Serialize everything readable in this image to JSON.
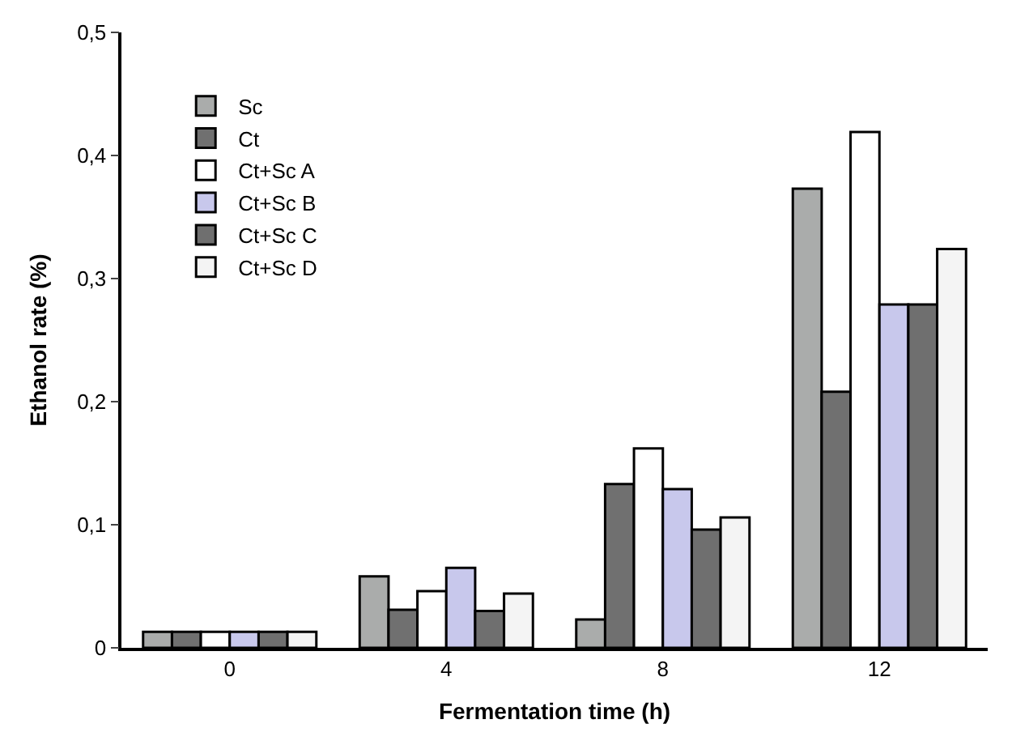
{
  "chart_data": {
    "type": "bar",
    "xlabel": "Fermentation time (h)",
    "ylabel": "Ethanol rate (%)",
    "categories": [
      "0",
      "4",
      "8",
      "12"
    ],
    "series": [
      {
        "name": "Sc",
        "color": "#aaacab",
        "values": [
          0.013,
          0.058,
          0.023,
          0.373
        ]
      },
      {
        "name": "Ct",
        "color": "#707070",
        "values": [
          0.013,
          0.031,
          0.133,
          0.208
        ]
      },
      {
        "name": "Ct+Sc A",
        "color": "#ffffff",
        "values": [
          0.013,
          0.046,
          0.162,
          0.419
        ]
      },
      {
        "name": "Ct+Sc B",
        "color": "#c8c8ec",
        "values": [
          0.013,
          0.065,
          0.129,
          0.279
        ]
      },
      {
        "name": "Ct+Sc C",
        "color": "#6f6f6f",
        "values": [
          0.013,
          0.03,
          0.096,
          0.279
        ]
      },
      {
        "name": "Ct+Sc D",
        "color": "#f4f4f4",
        "values": [
          0.013,
          0.044,
          0.106,
          0.324
        ]
      }
    ],
    "ylim": [
      0,
      0.5
    ],
    "yticks": [
      {
        "value": 0,
        "label": "0"
      },
      {
        "value": 0.1,
        "label": "0,1"
      },
      {
        "value": 0.2,
        "label": "0,2"
      },
      {
        "value": 0.3,
        "label": "0,3"
      },
      {
        "value": 0.4,
        "label": "0,4"
      },
      {
        "value": 0.5,
        "label": "0,5"
      }
    ],
    "grid": false,
    "legend": "top left"
  }
}
